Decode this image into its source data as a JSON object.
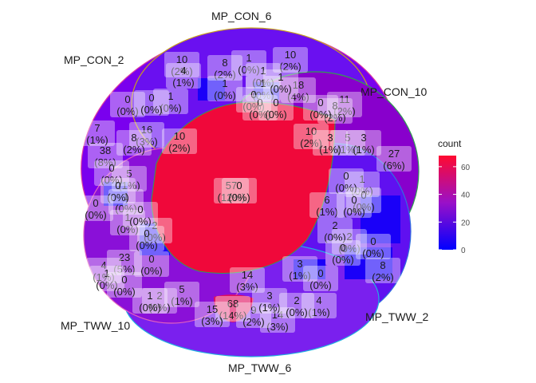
{
  "chart_data": {
    "type": "venn",
    "title": "",
    "sets": [
      {
        "name": "MP_CON_2",
        "edge_color": "#e040a0"
      },
      {
        "name": "MP_CON_6",
        "edge_color": "#c8a020"
      },
      {
        "name": "MP_CON_10",
        "edge_color": "#30a050"
      },
      {
        "name": "MP_TWW_2",
        "edge_color": "#3070e0"
      },
      {
        "name": "MP_TWW_6",
        "edge_color": "#20b0e0"
      },
      {
        "name": "MP_TWW_10",
        "edge_color": "#e060c0"
      }
    ],
    "fill_scale": {
      "legend_title": "count",
      "min": 0,
      "max": 68,
      "ticks": [
        0,
        20,
        40,
        60
      ],
      "low_color": "#0000ff",
      "high_color": "#ff0000"
    },
    "region_labels": [
      {
        "count": "57",
        "pct": "(12%)"
      },
      {
        "count": "68",
        "pct": "(14%)"
      },
      {
        "count": "27",
        "pct": "(6%)"
      },
      {
        "count": "38",
        "pct": "(8%)"
      },
      {
        "count": "23",
        "pct": "(5%)"
      },
      {
        "count": "18",
        "pct": "(4%)"
      },
      {
        "count": "16",
        "pct": "(3%)"
      },
      {
        "count": "15",
        "pct": "(3%)"
      },
      {
        "count": "14",
        "pct": "(3%)"
      },
      {
        "count": "14",
        "pct": "(3%)"
      },
      {
        "count": "11",
        "pct": "(2%)"
      },
      {
        "count": "10",
        "pct": "(2%)"
      },
      {
        "count": "10",
        "pct": "(2%)"
      },
      {
        "count": "10",
        "pct": "(2%)"
      },
      {
        "count": "10",
        "pct": "(2%)"
      },
      {
        "count": "9",
        "pct": "(2%)"
      },
      {
        "count": "8",
        "pct": "(2%)"
      },
      {
        "count": "8",
        "pct": "(2%)"
      },
      {
        "count": "8",
        "pct": "(2%)"
      },
      {
        "count": "8",
        "pct": "(2%)"
      },
      {
        "count": "7",
        "pct": "(1%)"
      },
      {
        "count": "6",
        "pct": "(1%)"
      },
      {
        "count": "5",
        "pct": "(1%)"
      },
      {
        "count": "5",
        "pct": "(1%)"
      },
      {
        "count": "5",
        "pct": "(1%)"
      },
      {
        "count": "4",
        "pct": "(1%)"
      },
      {
        "count": "4",
        "pct": "(1%)"
      },
      {
        "count": "4",
        "pct": "(1%)"
      },
      {
        "count": "3",
        "pct": "(1%)"
      },
      {
        "count": "3",
        "pct": "(1%)"
      },
      {
        "count": "3",
        "pct": "(1%)"
      },
      {
        "count": "3",
        "pct": "(1%)"
      },
      {
        "count": "2",
        "pct": "(0%)"
      },
      {
        "count": "2",
        "pct": "(0%)"
      },
      {
        "count": "2",
        "pct": "(0%)"
      },
      {
        "count": "2",
        "pct": "(0%)"
      },
      {
        "count": "2",
        "pct": "(0%)"
      },
      {
        "count": "1",
        "pct": "(0%)"
      },
      {
        "count": "1",
        "pct": "(0%)"
      },
      {
        "count": "1",
        "pct": "(0%)"
      },
      {
        "count": "1",
        "pct": "(0%)"
      },
      {
        "count": "1",
        "pct": "(0%)"
      },
      {
        "count": "1",
        "pct": "(0%)"
      },
      {
        "count": "1",
        "pct": "(0%)"
      },
      {
        "count": "1",
        "pct": "(0%)"
      },
      {
        "count": "1",
        "pct": "(0%)"
      },
      {
        "count": "1",
        "pct": "(0%)"
      },
      {
        "count": "1",
        "pct": "(0%)"
      },
      {
        "count": "0",
        "pct": "(0%)"
      },
      {
        "count": "0",
        "pct": "(0%)"
      },
      {
        "count": "0",
        "pct": "(0%)"
      },
      {
        "count": "0",
        "pct": "(0%)"
      },
      {
        "count": "0",
        "pct": "(0%)"
      },
      {
        "count": "0",
        "pct": "(0%)"
      },
      {
        "count": "0",
        "pct": "(0%)"
      },
      {
        "count": "0",
        "pct": "(0%)"
      },
      {
        "count": "0",
        "pct": "(0%)"
      },
      {
        "count": "0",
        "pct": "(0%)"
      },
      {
        "count": "0",
        "pct": "(0%)"
      },
      {
        "count": "0",
        "pct": "(0%)"
      },
      {
        "count": "0",
        "pct": "(0%)"
      },
      {
        "count": "0",
        "pct": "(0%)"
      },
      {
        "count": "0",
        "pct": "(0%)"
      },
      {
        "count": "0",
        "pct": "(0%)"
      },
      {
        "count": "0",
        "pct": "(0%)"
      },
      {
        "count": "0",
        "pct": "(0%)"
      },
      {
        "count": "0",
        "pct": "(0%)"
      },
      {
        "count": "0",
        "pct": "(0%)"
      }
    ]
  }
}
